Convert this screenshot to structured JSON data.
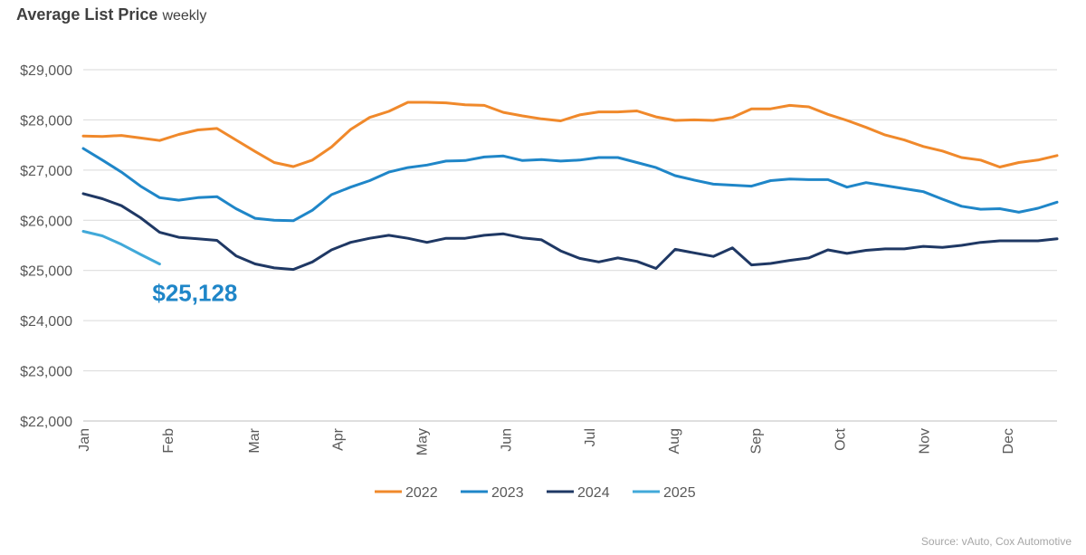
{
  "title": {
    "main": "Average List Price",
    "sub": "weekly"
  },
  "source": "Source: vAuto, Cox Automotive",
  "annotation": {
    "text": "$25,128",
    "series": "2025",
    "color": "#1f86c8"
  },
  "chart_data": {
    "type": "line",
    "x_unit": "week",
    "xlim": [
      1,
      52
    ],
    "ylim": [
      22000,
      29000
    ],
    "y_ticks": [
      22000,
      23000,
      24000,
      25000,
      26000,
      27000,
      28000,
      29000
    ],
    "y_tick_labels": [
      "$22,000",
      "$23,000",
      "$24,000",
      "$25,000",
      "$26,000",
      "$27,000",
      "$28,000",
      "$29,000"
    ],
    "x_ticks": [
      {
        "label": "Jan",
        "week": 1
      },
      {
        "label": "Feb",
        "week": 5.4
      },
      {
        "label": "Mar",
        "week": 9.9
      },
      {
        "label": "Apr",
        "week": 14.3
      },
      {
        "label": "May",
        "week": 18.7
      },
      {
        "label": "Jun",
        "week": 23.1
      },
      {
        "label": "Jul",
        "week": 27.5
      },
      {
        "label": "Aug",
        "week": 31.9
      },
      {
        "label": "Sep",
        "week": 36.2
      },
      {
        "label": "Oct",
        "week": 40.6
      },
      {
        "label": "Nov",
        "week": 45.0
      },
      {
        "label": "Dec",
        "week": 49.4
      }
    ],
    "grid": true,
    "legend_position": "bottom-center",
    "series": [
      {
        "name": "2022",
        "color": "#f0892b",
        "values": [
          27680,
          27670,
          27690,
          27640,
          27590,
          27710,
          27800,
          27830,
          27600,
          27370,
          27150,
          27070,
          27200,
          27460,
          27810,
          28050,
          28170,
          28350,
          28350,
          28340,
          28300,
          28290,
          28150,
          28080,
          28020,
          27980,
          28100,
          28160,
          28160,
          28180,
          28060,
          27990,
          28000,
          27990,
          28050,
          28220,
          28220,
          28290,
          28260,
          28110,
          27990,
          27850,
          27700,
          27600,
          27470,
          27380,
          27250,
          27200,
          27060,
          27150,
          27200,
          27290
        ]
      },
      {
        "name": "2023",
        "color": "#1f86c8",
        "values": [
          27430,
          27200,
          26960,
          26680,
          26450,
          26400,
          26450,
          26470,
          26230,
          26040,
          26000,
          25990,
          26200,
          26510,
          26660,
          26790,
          26960,
          27050,
          27100,
          27180,
          27190,
          27260,
          27280,
          27190,
          27210,
          27180,
          27200,
          27250,
          27250,
          27150,
          27050,
          26890,
          26800,
          26720,
          26700,
          26680,
          26790,
          26820,
          26810,
          26810,
          26660,
          26750,
          26690,
          26630,
          26570,
          26420,
          26280,
          26220,
          26230,
          26160,
          26240,
          26360
        ]
      },
      {
        "name": "2024",
        "color": "#1f3864",
        "values": [
          26530,
          26430,
          26290,
          26050,
          25760,
          25660,
          25630,
          25600,
          25290,
          25130,
          25050,
          25020,
          25170,
          25410,
          25560,
          25640,
          25700,
          25640,
          25560,
          25640,
          25640,
          25700,
          25730,
          25650,
          25610,
          25390,
          25240,
          25170,
          25250,
          25180,
          25040,
          25420,
          25350,
          25280,
          25450,
          25110,
          25140,
          25200,
          25250,
          25410,
          25340,
          25400,
          25430,
          25430,
          25480,
          25460,
          25500,
          25560,
          25590,
          25590,
          25590,
          25630
        ]
      },
      {
        "name": "2025",
        "color": "#41a9d9",
        "values": [
          25780,
          25690,
          25520,
          25320,
          25128
        ]
      }
    ]
  }
}
